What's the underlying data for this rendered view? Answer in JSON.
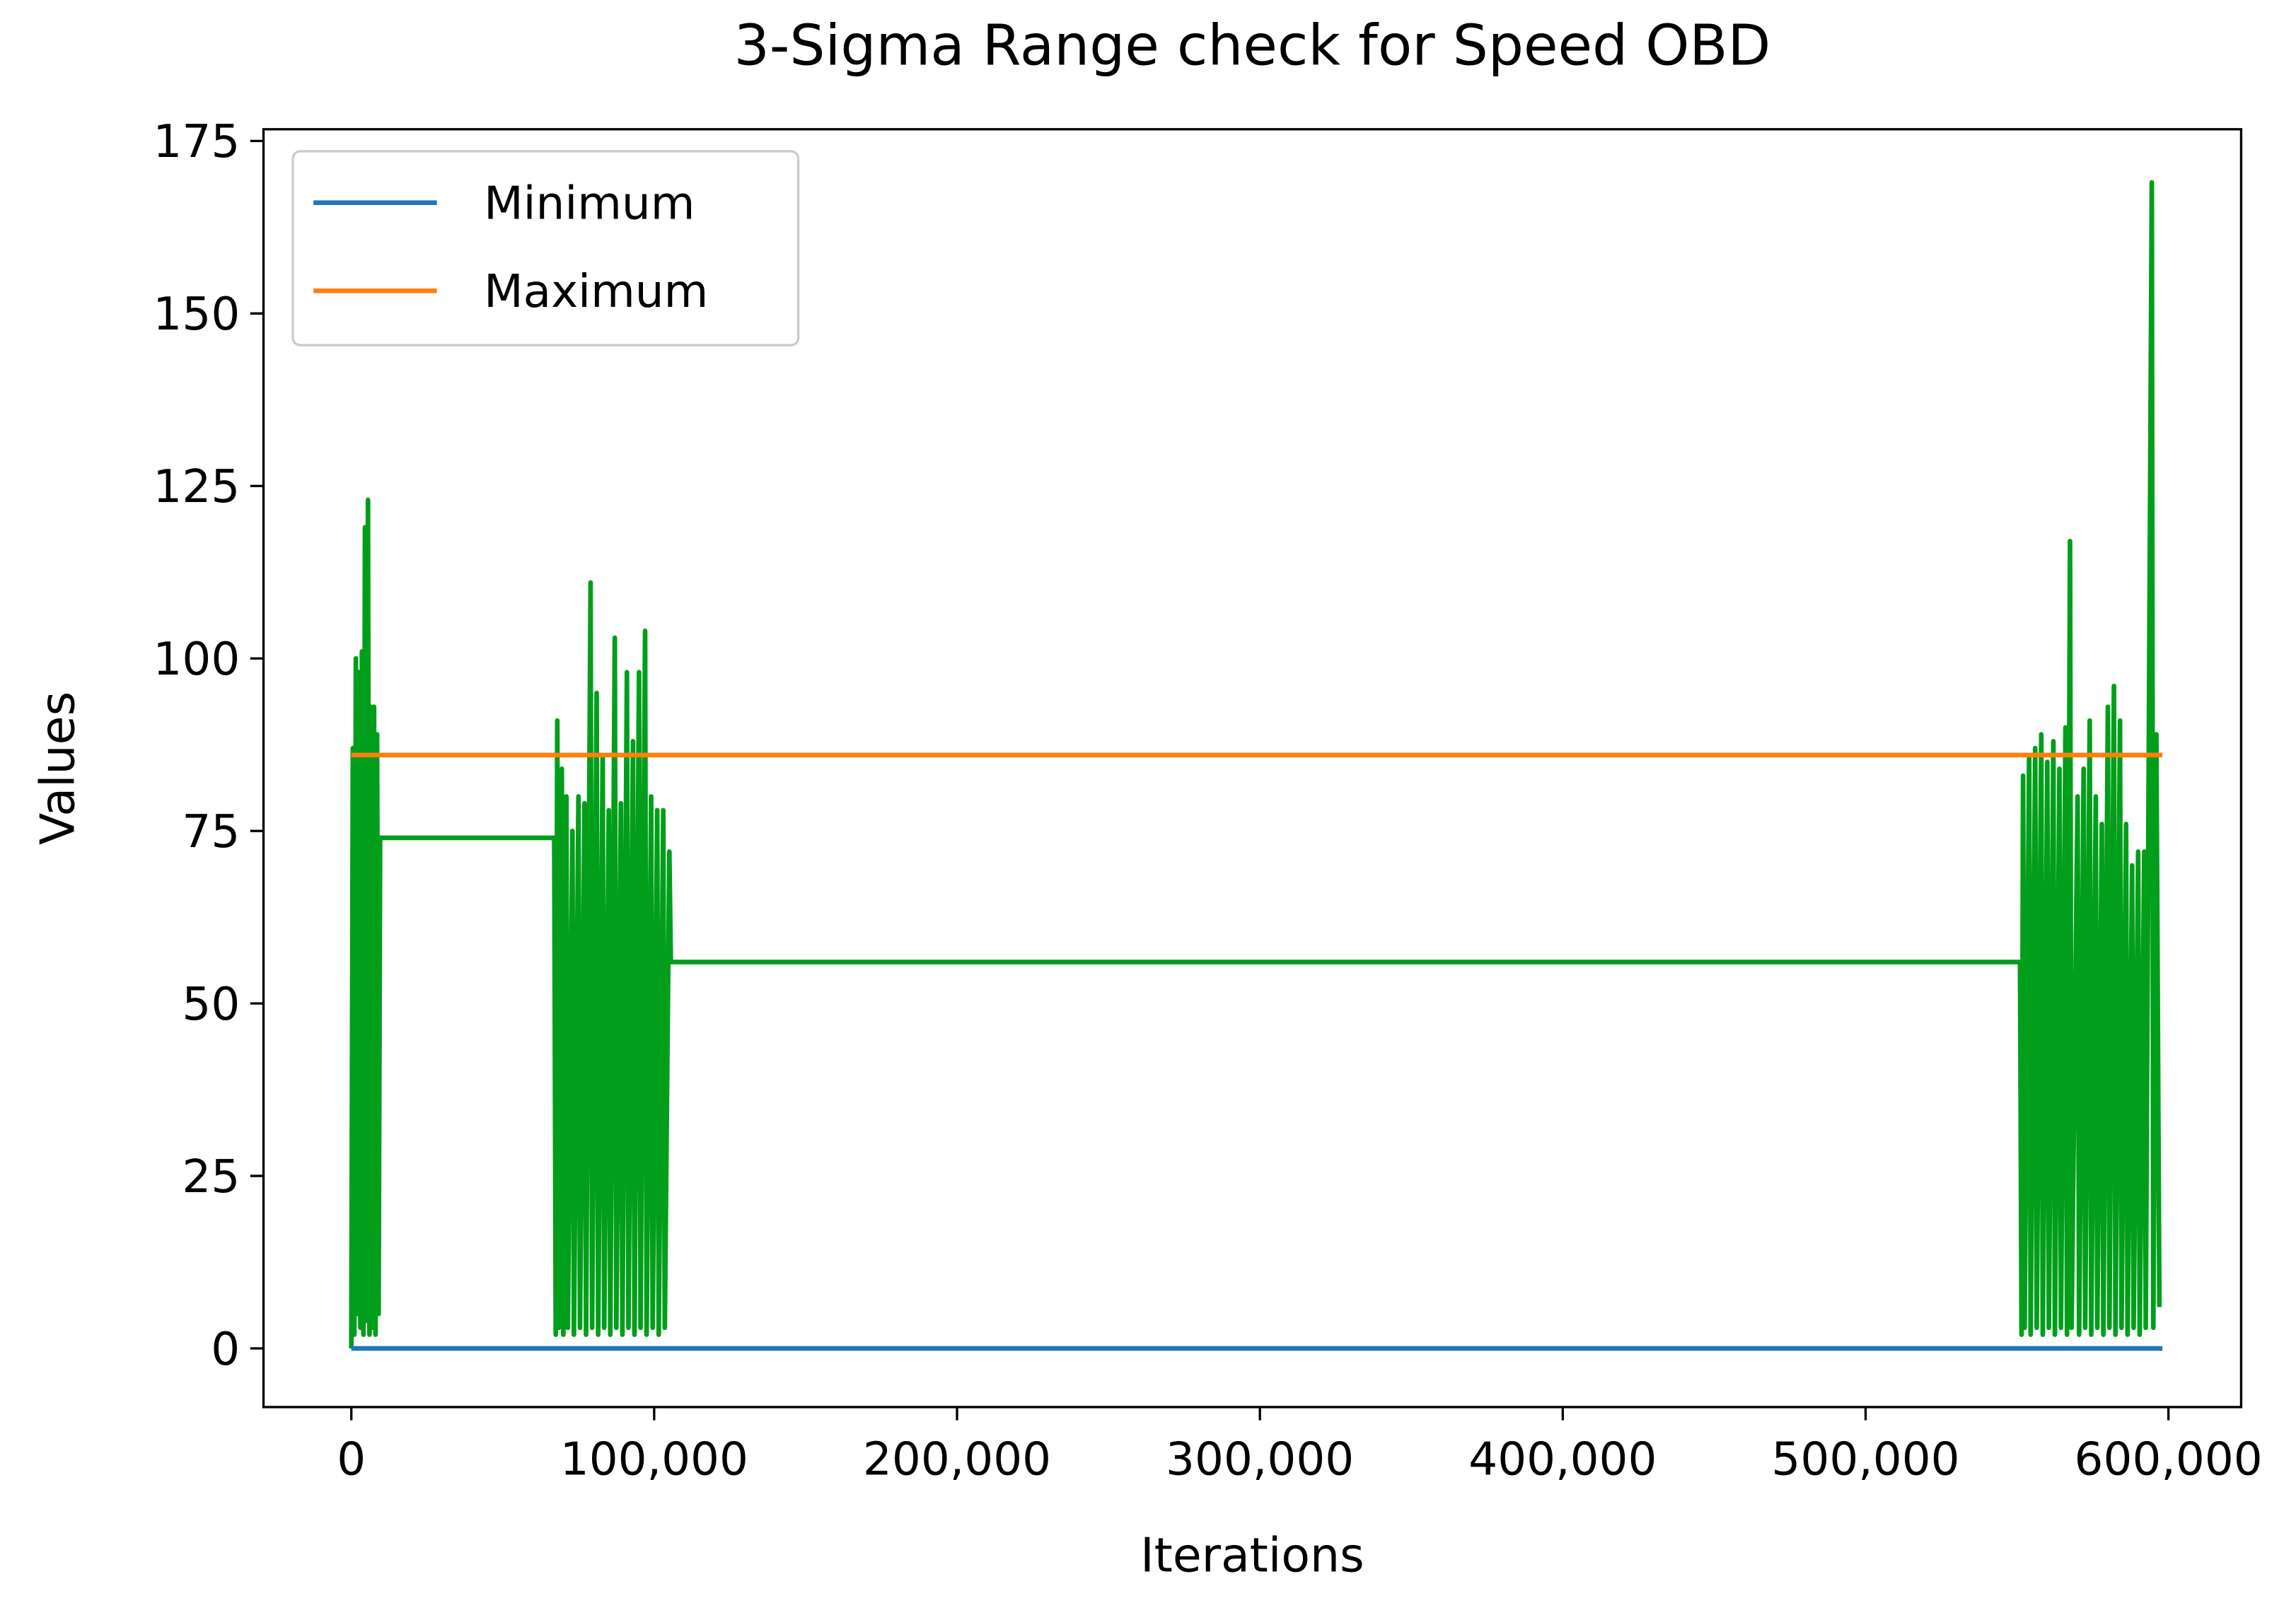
{
  "chart_data": {
    "type": "line",
    "title": "3-Sigma Range check for Speed OBD",
    "x_label": "Iterations",
    "y_label": "Values",
    "xlim": [
      -29000,
      624000
    ],
    "ylim": [
      -8.5,
      176.7
    ],
    "xticks": [
      0,
      {
        "value": 100000,
        "label": "100,000"
      },
      {
        "value": 200000,
        "label": "200,000"
      },
      {
        "value": 300000,
        "label": "300,000"
      },
      {
        "value": 400000,
        "label": "400,000"
      },
      {
        "value": 500000,
        "label": "500,000"
      },
      {
        "value": 600000,
        "label": "600,000"
      }
    ],
    "yticks": [
      0,
      25,
      50,
      75,
      100,
      125,
      150,
      175
    ],
    "legend": "upper left",
    "grid": false,
    "series": [
      {
        "color": "#009e1a",
        "x": [
          0,
          500,
          1000,
          1500,
          2000,
          2500,
          3000,
          3500,
          4000,
          4500,
          5000,
          5500,
          6000,
          6500,
          7000,
          7500,
          8000,
          8500,
          9000,
          9500,
          67000,
          67500,
          68000,
          68500,
          69500,
          70000,
          71000,
          71500,
          73000,
          73500,
          75000,
          75500,
          77000,
          77500,
          79000,
          79500,
          81000,
          81500,
          83000,
          83500,
          85000,
          85500,
          87000,
          87500,
          89000,
          89500,
          91000,
          91500,
          93000,
          93500,
          95000,
          95500,
          97000,
          97500,
          99000,
          99500,
          101000,
          101500,
          103000,
          103500,
          105000,
          105500,
          551000,
          551500,
          552000,
          552500,
          554000,
          554500,
          556000,
          556500,
          558000,
          558500,
          560000,
          560500,
          562000,
          562500,
          564000,
          564500,
          566000,
          566500,
          567500,
          568000,
          570000,
          570500,
          572000,
          572500,
          574000,
          574500,
          576000,
          576500,
          578000,
          578500,
          580000,
          580500,
          582000,
          582500,
          584000,
          584500,
          586000,
          586500,
          588000,
          588500,
          590000,
          590500,
          592000,
          592500,
          594500,
          595000,
          596000,
          597000
        ],
        "values": [
          0,
          87,
          2,
          100,
          5,
          98,
          3,
          101,
          2,
          119,
          4,
          123,
          2,
          93,
          3,
          93,
          2,
          89,
          5,
          74,
          74,
          2,
          91,
          3,
          84,
          2,
          80,
          3,
          75,
          2,
          80,
          3,
          79,
          2,
          111,
          3,
          95,
          2,
          86,
          3,
          78,
          2,
          103,
          3,
          79,
          2,
          98,
          3,
          88,
          2,
          98,
          3,
          104,
          2,
          80,
          3,
          78,
          2,
          78,
          3,
          72,
          56,
          56,
          2,
          83,
          3,
          86,
          2,
          87,
          3,
          89,
          2,
          85,
          3,
          88,
          2,
          84,
          3,
          90,
          2,
          117,
          3,
          80,
          2,
          84,
          3,
          91,
          2,
          80,
          3,
          76,
          2,
          93,
          3,
          96,
          2,
          91,
          3,
          76,
          2,
          70,
          3,
          72,
          2,
          72,
          3,
          169,
          3,
          89,
          6
        ]
      },
      {
        "name": "Minimum",
        "color": "#1f77b4",
        "x": [
          0,
          598000
        ],
        "values": [
          0,
          0
        ]
      },
      {
        "name": "Maximum",
        "color": "#ff7f0e",
        "x": [
          0,
          598000
        ],
        "values": [
          86,
          86
        ]
      }
    ]
  }
}
